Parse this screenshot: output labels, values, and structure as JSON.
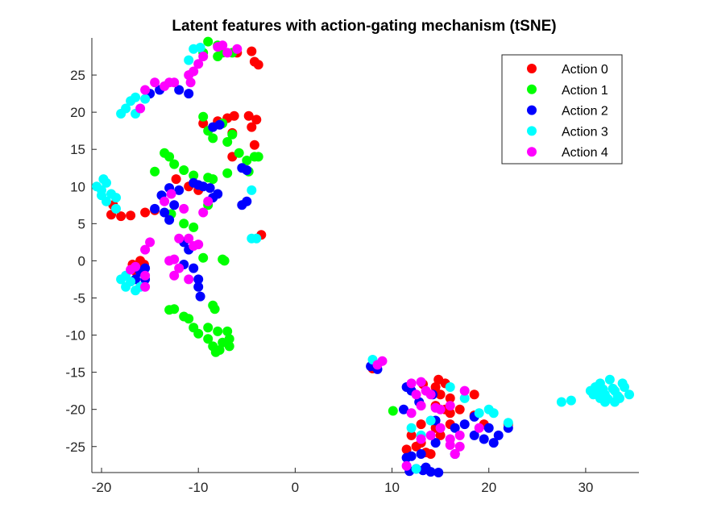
{
  "chart_data": {
    "type": "scatter",
    "title": "Latent features with action-gating mechanism (tSNE)",
    "xlabel": "",
    "ylabel": "",
    "xlim": [
      -21,
      35.5
    ],
    "ylim": [
      -28.5,
      30
    ],
    "xticks": [
      -20,
      -10,
      0,
      10,
      20,
      30
    ],
    "yticks": [
      25,
      20,
      15,
      10,
      5,
      0,
      -5,
      -10,
      -15,
      -20,
      -25
    ],
    "grid": false,
    "legend_position": "top-right",
    "series": [
      {
        "name": "Action 0",
        "color": "#ff0000",
        "points": [
          [
            -4.5,
            28.2
          ],
          [
            -6.0,
            28.0
          ],
          [
            -4.2,
            26.8
          ],
          [
            -3.8,
            26.4
          ],
          [
            -8.0,
            18.8
          ],
          [
            -7.0,
            19.2
          ],
          [
            -6.3,
            19.5
          ],
          [
            -4.8,
            19.5
          ],
          [
            -4.0,
            19.0
          ],
          [
            -4.5,
            18.0
          ],
          [
            -6.5,
            17.2
          ],
          [
            -9.5,
            18.5
          ],
          [
            -4.2,
            15.6
          ],
          [
            -6.5,
            14.0
          ],
          [
            -12.3,
            11.0
          ],
          [
            -11.0,
            10.0
          ],
          [
            -10.0,
            9.5
          ],
          [
            -18.8,
            7.5
          ],
          [
            -19.0,
            6.2
          ],
          [
            -18.0,
            6.0
          ],
          [
            -17.0,
            6.1
          ],
          [
            -15.5,
            6.5
          ],
          [
            -14.5,
            6.8
          ],
          [
            -3.5,
            3.5
          ],
          [
            -16.8,
            -0.5
          ],
          [
            -16.0,
            0.0
          ],
          [
            -15.6,
            -0.5
          ],
          [
            -16.5,
            -1.4
          ],
          [
            8.0,
            -14.5
          ],
          [
            13.2,
            -16.6
          ],
          [
            14.8,
            -16.0
          ],
          [
            15.5,
            -16.5
          ],
          [
            14.5,
            -17.0
          ],
          [
            15.0,
            -18.0
          ],
          [
            16.0,
            -18.5
          ],
          [
            18.5,
            -18.0
          ],
          [
            14.5,
            -19.5
          ],
          [
            15.5,
            -20.0
          ],
          [
            16.0,
            -20.5
          ],
          [
            17.0,
            -20.0
          ],
          [
            13.0,
            -22.0
          ],
          [
            14.5,
            -22.5
          ],
          [
            15.0,
            -23.5
          ],
          [
            16.0,
            -22.0
          ],
          [
            12.0,
            -23.5
          ],
          [
            12.5,
            -25.0
          ],
          [
            13.0,
            -24.5
          ],
          [
            14.0,
            -26.0
          ],
          [
            11.5,
            -25.4
          ],
          [
            13.5,
            -25.8
          ],
          [
            19.5,
            -22.0
          ],
          [
            22.0,
            -22.0
          ],
          [
            18.5,
            -20.8
          ]
        ]
      },
      {
        "name": "Action 1",
        "color": "#00ff00",
        "points": [
          [
            -9.0,
            29.5
          ],
          [
            -8.0,
            29.0
          ],
          [
            -9.5,
            28.0
          ],
          [
            -7.5,
            28.0
          ],
          [
            -6.5,
            28.0
          ],
          [
            -8.0,
            27.5
          ],
          [
            -9.5,
            19.4
          ],
          [
            -7.5,
            18.5
          ],
          [
            -6.5,
            17.0
          ],
          [
            -7.0,
            16.0
          ],
          [
            -8.5,
            16.5
          ],
          [
            -9.0,
            17.5
          ],
          [
            -4.2,
            14.0
          ],
          [
            -5.0,
            13.5
          ],
          [
            -5.8,
            14.5
          ],
          [
            -3.8,
            14.0
          ],
          [
            -13.5,
            14.5
          ],
          [
            -13.0,
            14.0
          ],
          [
            -12.5,
            13.0
          ],
          [
            -14.5,
            12.0
          ],
          [
            -11.5,
            12.2
          ],
          [
            -10.5,
            11.5
          ],
          [
            -9.0,
            11.2
          ],
          [
            -8.5,
            11.0
          ],
          [
            -7.0,
            11.8
          ],
          [
            -4.8,
            12.0
          ],
          [
            -9.0,
            7.5
          ],
          [
            -11.5,
            5.0
          ],
          [
            -10.5,
            4.5
          ],
          [
            -12.8,
            6.3
          ],
          [
            -9.5,
            0.4
          ],
          [
            -7.5,
            0.2
          ],
          [
            -7.3,
            0.0
          ],
          [
            -12.5,
            -6.5
          ],
          [
            -13.0,
            -6.6
          ],
          [
            -11.5,
            -7.5
          ],
          [
            -11.0,
            -7.8
          ],
          [
            -10.5,
            -9.0
          ],
          [
            -10.0,
            -9.8
          ],
          [
            -8.5,
            -6.0
          ],
          [
            -8.3,
            -6.5
          ],
          [
            -9.0,
            -9.0
          ],
          [
            -8.0,
            -9.5
          ],
          [
            -7.0,
            -9.5
          ],
          [
            -6.8,
            -10.5
          ],
          [
            -9.0,
            -10.5
          ],
          [
            -8.5,
            -11.5
          ],
          [
            -7.5,
            -11.0
          ],
          [
            -7.8,
            -12.0
          ],
          [
            -6.8,
            -11.5
          ],
          [
            -8.2,
            -12.3
          ],
          [
            10.1,
            -20.2
          ]
        ]
      },
      {
        "name": "Action 2",
        "color": "#0000ff",
        "points": [
          [
            -11.0,
            22.5
          ],
          [
            -12.0,
            23.0
          ],
          [
            -15.0,
            22.5
          ],
          [
            -14.0,
            23.0
          ],
          [
            -8.5,
            18.0
          ],
          [
            -7.8,
            18.3
          ],
          [
            -5.5,
            12.5
          ],
          [
            -5.0,
            12.2
          ],
          [
            -12.0,
            9.5
          ],
          [
            -13.0,
            9.8
          ],
          [
            -13.8,
            8.8
          ],
          [
            -12.5,
            7.5
          ],
          [
            -10.5,
            10.5
          ],
          [
            -10.0,
            10.2
          ],
          [
            -9.5,
            10.0
          ],
          [
            -8.8,
            9.8
          ],
          [
            -8.0,
            9.0
          ],
          [
            -8.5,
            8.5
          ],
          [
            -5.0,
            8.0
          ],
          [
            -5.5,
            7.5
          ],
          [
            -14.5,
            7.0
          ],
          [
            -13.5,
            6.5
          ],
          [
            -13.0,
            5.5
          ],
          [
            -11.5,
            2.5
          ],
          [
            -11.0,
            1.5
          ],
          [
            -11.5,
            -0.5
          ],
          [
            -10.5,
            -1.0
          ],
          [
            -10.0,
            -2.5
          ],
          [
            -10.0,
            -3.5
          ],
          [
            -9.8,
            -4.8
          ],
          [
            -16.5,
            -2.5
          ],
          [
            -15.5,
            -1.0
          ],
          [
            -15.5,
            -2.5
          ],
          [
            -16.0,
            -1.5
          ],
          [
            7.8,
            -14.2
          ],
          [
            8.5,
            -14.6
          ],
          [
            11.5,
            -17.0
          ],
          [
            12.0,
            -17.5
          ],
          [
            11.2,
            -20.0
          ],
          [
            14.2,
            -18.0
          ],
          [
            12.8,
            -19.0
          ],
          [
            14.5,
            -21.5
          ],
          [
            16.5,
            -22.5
          ],
          [
            17.5,
            -22.0
          ],
          [
            18.5,
            -21.0
          ],
          [
            20.0,
            -22.5
          ],
          [
            21.0,
            -23.5
          ],
          [
            19.5,
            -24.0
          ],
          [
            20.5,
            -24.5
          ],
          [
            18.5,
            -23.5
          ],
          [
            11.5,
            -26.5
          ],
          [
            12.0,
            -26.3
          ],
          [
            13.0,
            -26.0
          ],
          [
            14.5,
            -24.5
          ],
          [
            12.5,
            -28.0
          ],
          [
            13.2,
            -28.2
          ],
          [
            14.0,
            -28.4
          ],
          [
            14.8,
            -28.5
          ],
          [
            13.5,
            -27.8
          ],
          [
            11.8,
            -28.3
          ],
          [
            16.5,
            -26.0
          ],
          [
            22.0,
            -22.5
          ]
        ]
      },
      {
        "name": "Action 3",
        "color": "#00ffff",
        "points": [
          [
            -10.5,
            28.5
          ],
          [
            -9.8,
            28.7
          ],
          [
            -11.0,
            27.0
          ],
          [
            -17.0,
            21.5
          ],
          [
            -16.5,
            22.0
          ],
          [
            -15.5,
            21.8
          ],
          [
            -17.5,
            20.5
          ],
          [
            -16.5,
            19.8
          ],
          [
            -18.0,
            19.8
          ],
          [
            -20.5,
            10.0
          ],
          [
            -20.0,
            9.5
          ],
          [
            -19.5,
            10.5
          ],
          [
            -19.0,
            9.0
          ],
          [
            -19.5,
            8.0
          ],
          [
            -18.5,
            8.5
          ],
          [
            -18.5,
            7.0
          ],
          [
            -20.0,
            8.8
          ],
          [
            -19.8,
            11.0
          ],
          [
            -4.5,
            9.5
          ],
          [
            -4.5,
            3.0
          ],
          [
            -4.0,
            3.0
          ],
          [
            -18.0,
            -2.5
          ],
          [
            -17.0,
            -2.8
          ],
          [
            -17.5,
            -3.5
          ],
          [
            -16.5,
            -4.0
          ],
          [
            -16.0,
            -3.5
          ],
          [
            -17.5,
            -2.0
          ],
          [
            8.0,
            -13.3
          ],
          [
            14.0,
            -21.5
          ],
          [
            13.0,
            -23.5
          ],
          [
            12.0,
            -22.5
          ],
          [
            12.5,
            -28.0
          ],
          [
            16.0,
            -17.0
          ],
          [
            17.5,
            -18.5
          ],
          [
            19.0,
            -20.5
          ],
          [
            20.0,
            -20.0
          ],
          [
            20.5,
            -20.5
          ],
          [
            22.0,
            -21.8
          ],
          [
            27.5,
            -19.0
          ],
          [
            28.5,
            -18.8
          ],
          [
            30.5,
            -17.5
          ],
          [
            31.0,
            -17.0
          ],
          [
            31.5,
            -16.5
          ],
          [
            32.0,
            -18.0
          ],
          [
            32.5,
            -16.0
          ],
          [
            33.0,
            -17.5
          ],
          [
            33.5,
            -18.5
          ],
          [
            34.0,
            -17.0
          ],
          [
            31.5,
            -18.5
          ],
          [
            32.0,
            -19.0
          ],
          [
            33.0,
            -19.0
          ],
          [
            30.8,
            -18.0
          ],
          [
            31.2,
            -17.8
          ],
          [
            32.8,
            -17.2
          ],
          [
            33.8,
            -16.5
          ],
          [
            34.5,
            -18.0
          ],
          [
            31.8,
            -17.3
          ],
          [
            32.3,
            -18.6
          ],
          [
            33.3,
            -18.2
          ]
        ]
      },
      {
        "name": "Action 4",
        "color": "#ff00ff",
        "points": [
          [
            -8.0,
            28.8
          ],
          [
            -7.5,
            29.0
          ],
          [
            -6.0,
            28.5
          ],
          [
            -7.0,
            28.0
          ],
          [
            -9.5,
            27.5
          ],
          [
            -10.0,
            26.5
          ],
          [
            -10.5,
            25.5
          ],
          [
            -11.0,
            25.0
          ],
          [
            -10.8,
            24.0
          ],
          [
            -14.5,
            24.0
          ],
          [
            -13.0,
            24.0
          ],
          [
            -13.5,
            23.5
          ],
          [
            -12.5,
            24.0
          ],
          [
            -15.5,
            23.0
          ],
          [
            -16.0,
            20.5
          ],
          [
            -12.8,
            9.0
          ],
          [
            -13.5,
            8.0
          ],
          [
            -11.5,
            7.0
          ],
          [
            -9.0,
            8.0
          ],
          [
            -9.5,
            6.5
          ],
          [
            -12.0,
            3.0
          ],
          [
            -11.0,
            3.0
          ],
          [
            -10.5,
            2.0
          ],
          [
            -10.0,
            2.2
          ],
          [
            -15.0,
            2.5
          ],
          [
            -15.5,
            1.5
          ],
          [
            -13.0,
            0.0
          ],
          [
            -12.5,
            0.2
          ],
          [
            -12.5,
            -2.0
          ],
          [
            -12.0,
            -1.0
          ],
          [
            -11.0,
            -2.5
          ],
          [
            -16.5,
            -0.8
          ],
          [
            -17.0,
            -1.2
          ],
          [
            -15.5,
            -2.0
          ],
          [
            -15.5,
            -3.5
          ],
          [
            8.5,
            -14.0
          ],
          [
            9.0,
            -13.5
          ],
          [
            12.0,
            -16.5
          ],
          [
            13.0,
            -16.3
          ],
          [
            13.5,
            -17.5
          ],
          [
            14.0,
            -18.0
          ],
          [
            12.5,
            -18.0
          ],
          [
            13.0,
            -19.5
          ],
          [
            14.5,
            -19.8
          ],
          [
            12.0,
            -20.5
          ],
          [
            17.5,
            -17.5
          ],
          [
            16.0,
            -19.5
          ],
          [
            15.0,
            -20.0
          ],
          [
            14.0,
            -23.5
          ],
          [
            13.0,
            -24.0
          ],
          [
            15.0,
            -22.5
          ],
          [
            16.0,
            -24.0
          ],
          [
            17.0,
            -23.5
          ],
          [
            16.0,
            -24.8
          ],
          [
            16.5,
            -26.0
          ],
          [
            17.0,
            -25.0
          ],
          [
            19.0,
            -22.5
          ],
          [
            11.5,
            -27.6
          ]
        ]
      }
    ]
  }
}
